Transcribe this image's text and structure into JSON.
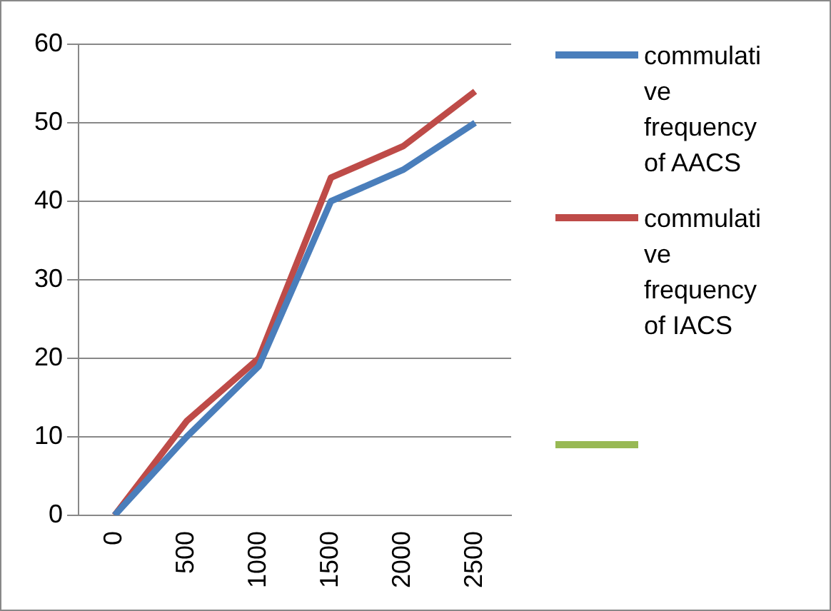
{
  "chart_data": {
    "type": "line",
    "categories": [
      "0",
      "500",
      "1000",
      "1500",
      "2000",
      "2500"
    ],
    "series": [
      {
        "name": "commulative frequency of AACS",
        "color": "#4a7ebb",
        "values": [
          0,
          10,
          19,
          40,
          44,
          50
        ]
      },
      {
        "name": "commulative frequency of IACS",
        "color": "#be4b48",
        "values": [
          0,
          12,
          20,
          43,
          47,
          54
        ]
      },
      {
        "color": "#98b954",
        "values": [
          null,
          null,
          null,
          null,
          null,
          null
        ]
      }
    ],
    "ylim": [
      0,
      60
    ],
    "yticks": [
      0,
      10,
      20,
      30,
      40,
      50,
      60
    ],
    "grid": "y",
    "legend": "right",
    "marker": "none",
    "line_style": "solid"
  }
}
